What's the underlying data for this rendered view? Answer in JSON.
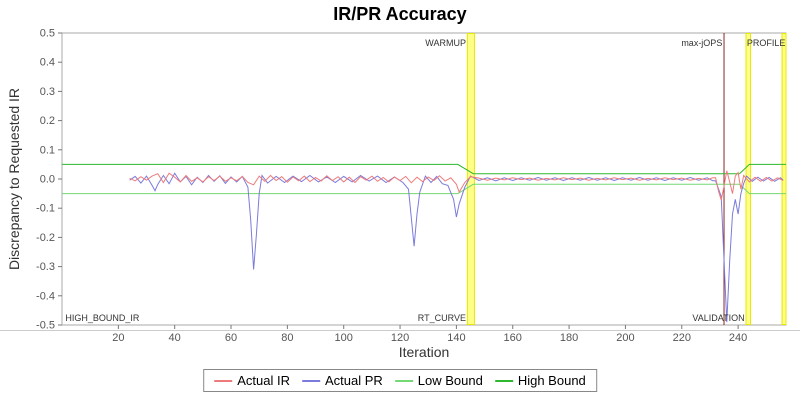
{
  "chart_data": {
    "type": "line",
    "title": "IR/PR Accuracy",
    "xlabel": "Iteration",
    "ylabel": "Discrepancy to Requested IR",
    "xlim": [
      0,
      257
    ],
    "ylim": [
      -0.5,
      0.5
    ],
    "xticks": [
      20,
      40,
      60,
      80,
      100,
      120,
      140,
      160,
      180,
      200,
      220,
      240
    ],
    "yticks": [
      0.5,
      0.4,
      0.3,
      0.2,
      0.1,
      0,
      -0.1,
      -0.2,
      -0.3,
      -0.4,
      -0.5
    ],
    "grid": false,
    "legend_position": "bottom",
    "colors": {
      "background": "#ffffff",
      "plot_border": "#aaaaaa",
      "tick_mark": "#777777",
      "band_fill": "#ffff88",
      "band_border": "#e8e800",
      "maxjops_line": "#8b2525"
    },
    "series": [
      {
        "name": "Actual IR",
        "color": "#ee7b7b",
        "points": [
          [
            24,
            0.002
          ],
          [
            26,
            -0.006
          ],
          [
            28,
            0.008
          ],
          [
            30,
            -0.004
          ],
          [
            32,
            0.01
          ],
          [
            34,
            0.018
          ],
          [
            36,
            -0.012
          ],
          [
            38,
            0.02
          ],
          [
            40,
            0.006
          ],
          [
            42,
            -0.01
          ],
          [
            44,
            0.012
          ],
          [
            46,
            -0.008
          ],
          [
            48,
            0.004
          ],
          [
            50,
            -0.01
          ],
          [
            52,
            0.008
          ],
          [
            54,
            -0.005
          ],
          [
            56,
            0.01
          ],
          [
            58,
            -0.008
          ],
          [
            60,
            0.004
          ],
          [
            62,
            -0.006
          ],
          [
            64,
            0.009
          ],
          [
            66,
            -0.012
          ],
          [
            68,
            -0.02
          ],
          [
            70,
            0.01
          ],
          [
            72,
            -0.008
          ],
          [
            74,
            0.012
          ],
          [
            76,
            -0.005
          ],
          [
            78,
            0.008
          ],
          [
            80,
            -0.011
          ],
          [
            82,
            0.007
          ],
          [
            84,
            -0.006
          ],
          [
            86,
            0.01
          ],
          [
            88,
            -0.009
          ],
          [
            90,
            0.005
          ],
          [
            92,
            -0.007
          ],
          [
            94,
            0.011
          ],
          [
            96,
            -0.005
          ],
          [
            98,
            0.008
          ],
          [
            100,
            -0.01
          ],
          [
            102,
            0.006
          ],
          [
            104,
            -0.012
          ],
          [
            106,
            0.008
          ],
          [
            108,
            -0.004
          ],
          [
            110,
            0.01
          ],
          [
            112,
            -0.008
          ],
          [
            114,
            0.005
          ],
          [
            116,
            -0.01
          ],
          [
            118,
            0.007
          ],
          [
            120,
            -0.005
          ],
          [
            122,
            0.009
          ],
          [
            124,
            -0.013
          ],
          [
            126,
            0.006
          ],
          [
            128,
            -0.009
          ],
          [
            130,
            0.007
          ],
          [
            132,
            -0.005
          ],
          [
            134,
            0.011
          ],
          [
            136,
            -0.007
          ],
          [
            138,
            0.004
          ],
          [
            140,
            -0.018
          ],
          [
            141,
            -0.045
          ],
          [
            142,
            -0.028
          ],
          [
            143,
            -0.012
          ],
          [
            145,
            0.008
          ],
          [
            148,
            0.003
          ],
          [
            151,
            -0.004
          ],
          [
            154,
            0.003
          ],
          [
            157,
            -0.003
          ],
          [
            160,
            0.004
          ],
          [
            163,
            -0.002
          ],
          [
            166,
            0.003
          ],
          [
            169,
            -0.004
          ],
          [
            172,
            0.002
          ],
          [
            175,
            -0.003
          ],
          [
            178,
            0.004
          ],
          [
            181,
            -0.002
          ],
          [
            184,
            0.003
          ],
          [
            187,
            -0.004
          ],
          [
            190,
            0.002
          ],
          [
            193,
            -0.003
          ],
          [
            196,
            0.004
          ],
          [
            199,
            -0.002
          ],
          [
            202,
            0.003
          ],
          [
            205,
            -0.004
          ],
          [
            208,
            0.002
          ],
          [
            211,
            -0.003
          ],
          [
            214,
            0.004
          ],
          [
            217,
            -0.002
          ],
          [
            220,
            0.003
          ],
          [
            223,
            -0.004
          ],
          [
            226,
            0.002
          ],
          [
            229,
            -0.003
          ],
          [
            231,
            0.004
          ],
          [
            232,
            0.004
          ],
          [
            233,
            -0.04
          ],
          [
            234,
            -0.072
          ],
          [
            235,
            -0.025
          ],
          [
            236,
            0.028
          ],
          [
            237,
            -0.01
          ],
          [
            238,
            -0.05
          ],
          [
            239,
            0.01
          ],
          [
            240,
            0.022
          ],
          [
            241,
            -0.035
          ],
          [
            242,
            0.012
          ],
          [
            244,
            -0.01
          ],
          [
            246,
            0.006
          ],
          [
            248,
            -0.008
          ],
          [
            250,
            0.005
          ],
          [
            252,
            -0.007
          ],
          [
            254,
            0.004
          ],
          [
            256,
            -0.005
          ]
        ]
      },
      {
        "name": "Actual PR",
        "color": "#7b7bdc",
        "points": [
          [
            24,
            -0.004
          ],
          [
            26,
            0.009
          ],
          [
            28,
            -0.014
          ],
          [
            30,
            0.01
          ],
          [
            32,
            -0.022
          ],
          [
            33,
            -0.04
          ],
          [
            34,
            -0.018
          ],
          [
            36,
            0.012
          ],
          [
            38,
            -0.016
          ],
          [
            40,
            0.02
          ],
          [
            42,
            -0.01
          ],
          [
            44,
            0.009
          ],
          [
            46,
            -0.02
          ],
          [
            48,
            0.006
          ],
          [
            50,
            -0.012
          ],
          [
            52,
            0.012
          ],
          [
            54,
            -0.008
          ],
          [
            56,
            0.011
          ],
          [
            58,
            -0.015
          ],
          [
            60,
            0.007
          ],
          [
            62,
            -0.01
          ],
          [
            64,
            0.009
          ],
          [
            66,
            -0.028
          ],
          [
            67,
            -0.14
          ],
          [
            68,
            -0.31
          ],
          [
            69,
            -0.19
          ],
          [
            70,
            -0.05
          ],
          [
            71,
            0.012
          ],
          [
            73,
            -0.014
          ],
          [
            76,
            0.009
          ],
          [
            79,
            -0.012
          ],
          [
            82,
            0.01
          ],
          [
            85,
            -0.009
          ],
          [
            88,
            0.012
          ],
          [
            91,
            -0.01
          ],
          [
            94,
            0.007
          ],
          [
            97,
            -0.012
          ],
          [
            100,
            0.009
          ],
          [
            103,
            -0.01
          ],
          [
            106,
            0.012
          ],
          [
            109,
            -0.007
          ],
          [
            112,
            0.01
          ],
          [
            115,
            -0.012
          ],
          [
            118,
            0.007
          ],
          [
            121,
            -0.012
          ],
          [
            123,
            -0.035
          ],
          [
            125,
            -0.23
          ],
          [
            126,
            -0.12
          ],
          [
            127,
            -0.045
          ],
          [
            129,
            0.01
          ],
          [
            131,
            -0.012
          ],
          [
            133,
            0.009
          ],
          [
            135,
            -0.016
          ],
          [
            137,
            -0.022
          ],
          [
            139,
            -0.07
          ],
          [
            140,
            -0.13
          ],
          [
            141,
            -0.085
          ],
          [
            143,
            -0.028
          ],
          [
            145,
            0.01
          ],
          [
            148,
            -0.005
          ],
          [
            151,
            0.004
          ],
          [
            154,
            -0.006
          ],
          [
            157,
            0.004
          ],
          [
            160,
            -0.005
          ],
          [
            163,
            0.004
          ],
          [
            166,
            -0.004
          ],
          [
            169,
            0.005
          ],
          [
            172,
            -0.004
          ],
          [
            175,
            0.004
          ],
          [
            178,
            -0.005
          ],
          [
            181,
            0.004
          ],
          [
            184,
            -0.004
          ],
          [
            187,
            0.005
          ],
          [
            190,
            -0.004
          ],
          [
            193,
            0.004
          ],
          [
            196,
            -0.005
          ],
          [
            199,
            0.004
          ],
          [
            202,
            -0.004
          ],
          [
            205,
            0.005
          ],
          [
            208,
            -0.004
          ],
          [
            211,
            0.004
          ],
          [
            214,
            -0.005
          ],
          [
            217,
            0.004
          ],
          [
            220,
            -0.004
          ],
          [
            223,
            0.005
          ],
          [
            226,
            -0.004
          ],
          [
            229,
            0.004
          ],
          [
            231,
            -0.006
          ],
          [
            232,
            -0.006
          ],
          [
            234,
            -0.06
          ],
          [
            236,
            -0.49
          ],
          [
            237,
            -0.28
          ],
          [
            238,
            -0.12
          ],
          [
            239,
            -0.07
          ],
          [
            240,
            -0.12
          ],
          [
            241,
            -0.05
          ],
          [
            242,
            -0.015
          ],
          [
            243,
            0.01
          ],
          [
            245,
            -0.008
          ],
          [
            247,
            0.006
          ],
          [
            249,
            -0.007
          ],
          [
            251,
            0.005
          ],
          [
            253,
            -0.008
          ],
          [
            255,
            0.004
          ],
          [
            256,
            -0.004
          ]
        ]
      },
      {
        "name": "Low Bound",
        "color": "#74d874",
        "points": [
          [
            0,
            -0.05
          ],
          [
            140.5,
            -0.05
          ],
          [
            146,
            -0.018
          ],
          [
            240.5,
            -0.018
          ],
          [
            244,
            -0.05
          ],
          [
            257,
            -0.05
          ]
        ]
      },
      {
        "name": "High Bound",
        "color": "#2db82d",
        "points": [
          [
            0,
            0.05
          ],
          [
            140.5,
            0.05
          ],
          [
            146,
            0.018
          ],
          [
            240.5,
            0.018
          ],
          [
            244,
            0.05
          ],
          [
            257,
            0.05
          ]
        ]
      }
    ],
    "annotations": {
      "bands": [
        {
          "x0": 143.9,
          "x1": 146.4
        },
        {
          "x0": 242.8,
          "x1": 244.4
        },
        {
          "x0": 255.6,
          "x1": 257
        }
      ],
      "vlines": [
        {
          "x": 235,
          "name": "max-jops-line"
        }
      ],
      "labels": [
        {
          "text": "HIGH_BOUND_IR",
          "x": 1.2,
          "pos": "bottom",
          "align": "start"
        },
        {
          "text": "WARMUP",
          "x": 143.4,
          "pos": "top",
          "align": "end"
        },
        {
          "text": "RT_CURVE",
          "x": 143.4,
          "pos": "bottom",
          "align": "end"
        },
        {
          "text": "max-jOPS",
          "x": 234.4,
          "pos": "top",
          "align": "end"
        },
        {
          "text": "VALIDATION",
          "x": 242.3,
          "pos": "bottom",
          "align": "end"
        },
        {
          "text": "PROFILE",
          "x": 256.8,
          "pos": "top",
          "align": "end"
        }
      ]
    }
  }
}
